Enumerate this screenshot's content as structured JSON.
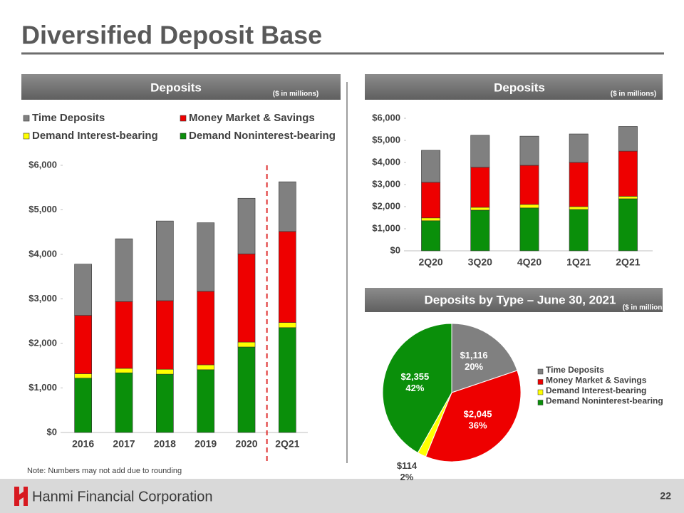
{
  "slide": {
    "title": "Diversified Deposit Base",
    "note": "Note: Numbers may not add due to rounding",
    "company": "Hanmi Financial Corporation",
    "page_number": 22
  },
  "chart_data": [
    {
      "type": "bar",
      "stacked": true,
      "title": "Deposits",
      "units": "($ in millions)",
      "categories": [
        "2016",
        "2017",
        "2018",
        "2019",
        "2020",
        "2Q21"
      ],
      "series": [
        {
          "name": "Time Deposits",
          "color": "#808080",
          "values": [
            1150,
            1410,
            1790,
            1540,
            1250,
            1116
          ]
        },
        {
          "name": "Money Market & Savings",
          "color": "#ee0000",
          "values": [
            1310,
            1500,
            1540,
            1650,
            1980,
            2045
          ]
        },
        {
          "name": "Demand Interest-bearing",
          "color": "#ffff00",
          "values": [
            100,
            100,
            110,
            110,
            110,
            114
          ]
        },
        {
          "name": "Demand Noninterest-bearing",
          "color": "#0a8f0a",
          "values": [
            1220,
            1340,
            1310,
            1410,
            1920,
            2355
          ]
        }
      ],
      "ylim": [
        0,
        6000
      ],
      "yticks": [
        {
          "value": 0,
          "label": "$0"
        },
        {
          "value": 1000,
          "label": "$1,000"
        },
        {
          "value": 2000,
          "label": "$2,000"
        },
        {
          "value": 3000,
          "label": "$3,000"
        },
        {
          "value": 4000,
          "label": "$4,000"
        },
        {
          "value": 5000,
          "label": "$5,000"
        },
        {
          "value": 6000,
          "label": "$6,000"
        }
      ],
      "grid": false,
      "legend": "top"
    },
    {
      "type": "bar",
      "stacked": true,
      "title": "Deposits",
      "units": "($ in millions)",
      "categories": [
        "2Q20",
        "3Q20",
        "4Q20",
        "1Q21",
        "2Q21"
      ],
      "series": [
        {
          "color": "#808080",
          "values": [
            1450,
            1450,
            1320,
            1290,
            1116
          ]
        },
        {
          "color": "#ee0000",
          "values": [
            1610,
            1810,
            1770,
            2000,
            2045
          ]
        },
        {
          "color": "#ffff00",
          "values": [
            130,
            130,
            160,
            130,
            114
          ]
        },
        {
          "color": "#0a8f0a",
          "values": [
            1360,
            1840,
            1940,
            1870,
            2355
          ]
        }
      ],
      "ylim": [
        0,
        6000
      ],
      "yticks": [
        {
          "value": 0,
          "label": "$0"
        },
        {
          "value": 1000,
          "label": "$1,000"
        },
        {
          "value": 2000,
          "label": "$2,000"
        },
        {
          "value": 3000,
          "label": "$3,000"
        },
        {
          "value": 4000,
          "label": "$4,000"
        },
        {
          "value": 5000,
          "label": "$5,000"
        },
        {
          "value": 6000,
          "label": "$6,000"
        }
      ],
      "grid": false
    },
    {
      "type": "pie",
      "title": "Deposits by Type – June 30, 2021",
      "units": "($ in millions)",
      "categories": [
        "Time Deposits",
        "Money Market & Savings",
        "Demand Interest-bearing",
        "Demand Noninterest-bearing"
      ],
      "colors": [
        "#808080",
        "#ee0000",
        "#ffff00",
        "#0a8f0a"
      ],
      "values": [
        1116,
        2045,
        114,
        2355
      ],
      "value_labels": [
        "$1,116",
        "$2,045",
        "$114",
        "$2,355"
      ],
      "percent_labels": [
        "20%",
        "36%",
        "2%",
        "42%"
      ],
      "legend": "right"
    }
  ]
}
